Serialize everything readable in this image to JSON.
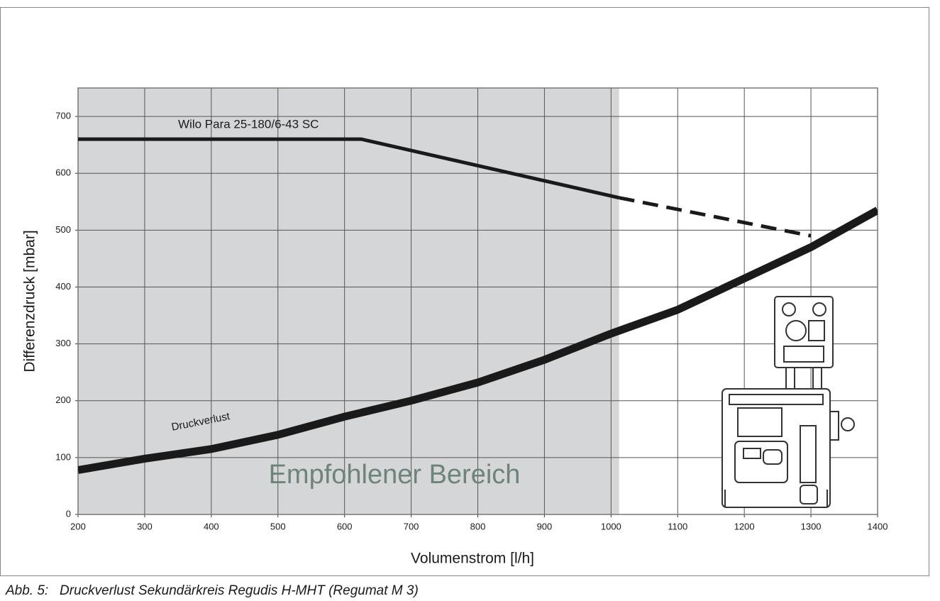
{
  "chart_data": {
    "type": "line",
    "ylabel": "Differenzdruck [mbar]",
    "xlabel": "Volumenstrom [l/h]",
    "caption": "Abb. 5:   Druckverlust Sekundärkreis Regudis H-MHT (Regumat M 3)",
    "xlim": [
      200,
      1400
    ],
    "xticks": [
      200,
      300,
      400,
      500,
      600,
      700,
      800,
      900,
      1000,
      1100,
      1200,
      1300,
      1400
    ],
    "ylim": [
      0,
      750
    ],
    "yticks": [
      0,
      100,
      200,
      300,
      400,
      500,
      600,
      700
    ],
    "grid": true,
    "shaded_region": {
      "label": "Empfohlener Bereich",
      "xlim": [
        200,
        1012
      ],
      "color": "#d5d6d8"
    },
    "series": [
      {
        "name": "Wilo Para 25-180/6-43 SC",
        "color": "#1a1a1a",
        "style": "solid",
        "width": 5,
        "x": [
          200,
          625,
          1012
        ],
        "values": [
          660,
          660,
          557
        ]
      },
      {
        "color": "#1a1a1a",
        "style": "dashed",
        "width": 5,
        "x": [
          1012,
          1300
        ],
        "values": [
          557,
          490
        ]
      },
      {
        "name": "Druckverlust",
        "color": "#1a1a1a",
        "style": "solid",
        "width": 11,
        "x": [
          200,
          300,
          400,
          500,
          600,
          700,
          800,
          900,
          1000,
          1100,
          1200,
          1300,
          1400
        ],
        "values": [
          78,
          98,
          115,
          140,
          172,
          200,
          232,
          272,
          318,
          360,
          415,
          470,
          535
        ]
      }
    ]
  }
}
